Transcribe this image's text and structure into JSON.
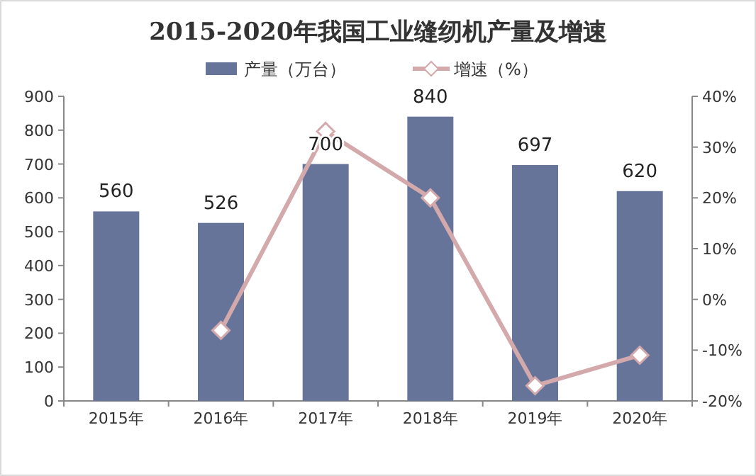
{
  "chart_data": {
    "type": "bar",
    "title": "2015-2020年我国工业缝纫机产量及增速",
    "categories": [
      "2015年",
      "2016年",
      "2017年",
      "2018年",
      "2019年",
      "2020年"
    ],
    "series": [
      {
        "name": "产量（万台）",
        "color": "#67749a",
        "values": [
          560,
          526,
          700,
          840,
          697,
          620
        ],
        "value_labels": [
          "560",
          "526",
          "700",
          "840",
          "697",
          "620"
        ]
      },
      {
        "name": "增速（%）",
        "type": "line",
        "axis": "y2",
        "color": "#d4a9ac",
        "marker": "diamond",
        "values": [
          null,
          -6.1,
          33.1,
          20,
          -17,
          -11
        ]
      }
    ],
    "ylim": [
      0,
      900
    ],
    "yticks": [
      0,
      100,
      200,
      300,
      400,
      500,
      600,
      700,
      800,
      900
    ],
    "y2lim": [
      -20,
      40
    ],
    "y2ticks": [
      {
        "value": -20,
        "label": "-20%"
      },
      {
        "value": -10,
        "label": "-10%"
      },
      {
        "value": 0,
        "label": "0%"
      },
      {
        "value": 10,
        "label": "10%"
      },
      {
        "value": 20,
        "label": "20%"
      },
      {
        "value": 30,
        "label": "30%"
      },
      {
        "value": 40,
        "label": "40%"
      }
    ],
    "grid": false,
    "legend": "top"
  }
}
